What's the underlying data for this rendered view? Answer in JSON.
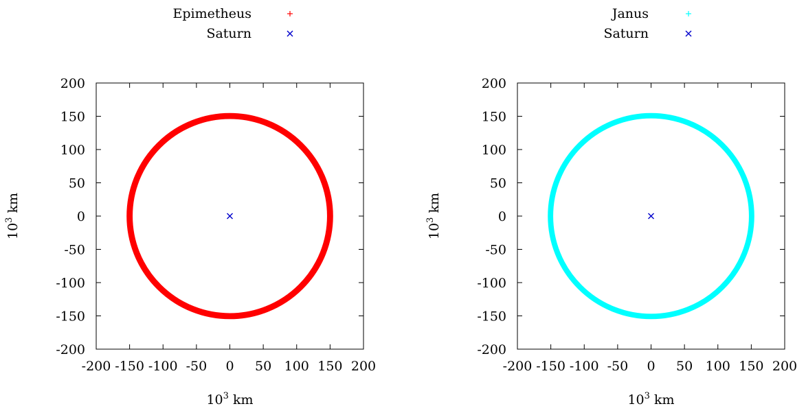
{
  "chart_data": [
    {
      "type": "scatter",
      "title": "",
      "xlabel": "10",
      "xlabel_sup": "3",
      "xlabel_unit": " km",
      "ylabel": "10",
      "ylabel_sup": "3",
      "ylabel_unit": " km",
      "xlim": [
        -200,
        200
      ],
      "ylim": [
        -200,
        200
      ],
      "xticks": [
        -200,
        -150,
        -100,
        -50,
        0,
        50,
        100,
        150,
        200
      ],
      "yticks": [
        -200,
        -150,
        -100,
        -50,
        0,
        50,
        100,
        150,
        200
      ],
      "legend_position": "top",
      "series": [
        {
          "name": "Epimetheus",
          "marker": "+",
          "color": "#ff0000",
          "shape": "ring",
          "center": [
            0,
            0
          ],
          "radius_inner": 147,
          "radius_outer": 153
        },
        {
          "name": "Saturn",
          "marker": "x",
          "color": "#0000cc",
          "points": [
            [
              0,
              0
            ]
          ]
        }
      ]
    },
    {
      "type": "scatter",
      "title": "",
      "xlabel": "10",
      "xlabel_sup": "3",
      "xlabel_unit": " km",
      "ylabel": "10",
      "ylabel_sup": "3",
      "ylabel_unit": " km",
      "xlim": [
        -200,
        200
      ],
      "ylim": [
        -200,
        200
      ],
      "xticks": [
        -200,
        -150,
        -100,
        -50,
        0,
        50,
        100,
        150,
        200
      ],
      "yticks": [
        -200,
        -150,
        -100,
        -50,
        0,
        50,
        100,
        150,
        200
      ],
      "legend_position": "top",
      "series": [
        {
          "name": "Janus",
          "marker": "+",
          "color": "#00ffff",
          "shape": "ring",
          "center": [
            0,
            0
          ],
          "radius_inner": 148,
          "radius_outer": 153
        },
        {
          "name": "Saturn",
          "marker": "x",
          "color": "#0000cc",
          "points": [
            [
              0,
              0
            ]
          ]
        }
      ]
    }
  ]
}
